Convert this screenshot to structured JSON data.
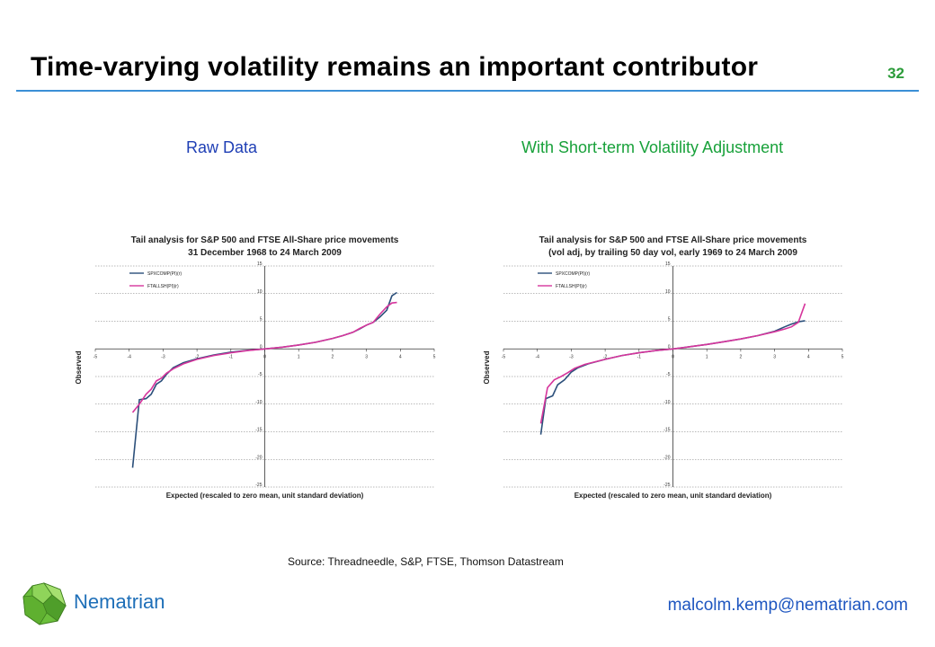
{
  "slide": {
    "title": "Time-varying volatility remains an important contributor",
    "page_number": "32",
    "raw_title": "Raw Data",
    "adjusted_title": "With Short-term Volatility Adjustment",
    "source": "Source: Threadneedle, S&P, FTSE, Thomson Datastream",
    "brand": "Nematrian",
    "email": "malcolm.kemp@nematrian.com"
  },
  "colors": {
    "title_rule": "#3b8fd6",
    "sp_series": "#2b4f7a",
    "ftse_series": "#d6359c",
    "raw_title": "#1f3fb5",
    "adjusted_title": "#18a13a",
    "brand": "#1e6fb8"
  },
  "chart_data": [
    {
      "type": "line",
      "title": "Tail analysis for S&P 500 and FTSE All-Share price movements",
      "subtitle": "31 December 1968 to 24 March 2009",
      "xlabel": "Expected (rescaled to zero mean, unit standard deviation)",
      "ylabel": "Observed",
      "xlim": [
        -5,
        5
      ],
      "ylim": [
        -25,
        15
      ],
      "x_ticks": [
        "-5",
        "-4",
        "-3",
        "-2",
        "-1",
        "0",
        "1",
        "2",
        "3",
        "4",
        "5"
      ],
      "y_ticks": [
        "15",
        "10",
        "5",
        "0",
        "-5",
        "-10",
        "-15",
        "-20",
        "-25"
      ],
      "legend": "top-left",
      "series": [
        {
          "name": "SPXCOMP(PI)(r)",
          "color": "#2b4f7a",
          "points": [
            [
              -3.9,
              -21.5
            ],
            [
              -3.7,
              -9.2
            ],
            [
              -3.5,
              -9.0
            ],
            [
              -3.35,
              -8.2
            ],
            [
              -3.2,
              -6.4
            ],
            [
              -3.05,
              -5.8
            ],
            [
              -2.9,
              -4.6
            ],
            [
              -2.7,
              -3.4
            ],
            [
              -2.4,
              -2.5
            ],
            [
              -2.0,
              -1.8
            ],
            [
              -1.5,
              -1.1
            ],
            [
              -1.0,
              -0.6
            ],
            [
              -0.5,
              -0.25
            ],
            [
              0,
              0
            ],
            [
              0.5,
              0.3
            ],
            [
              1.0,
              0.7
            ],
            [
              1.5,
              1.2
            ],
            [
              2.0,
              1.9
            ],
            [
              2.3,
              2.4
            ],
            [
              2.6,
              3.0
            ],
            [
              2.8,
              3.6
            ],
            [
              3.0,
              4.3
            ],
            [
              3.2,
              4.8
            ],
            [
              3.4,
              5.8
            ],
            [
              3.6,
              7.0
            ],
            [
              3.75,
              9.6
            ],
            [
              3.9,
              10.2
            ]
          ]
        },
        {
          "name": "FTALLSH(PI)(r)",
          "color": "#d6359c",
          "points": [
            [
              -3.9,
              -11.5
            ],
            [
              -3.7,
              -10.0
            ],
            [
              -3.5,
              -8.2
            ],
            [
              -3.35,
              -7.3
            ],
            [
              -3.2,
              -5.8
            ],
            [
              -3.05,
              -5.3
            ],
            [
              -2.9,
              -4.4
            ],
            [
              -2.7,
              -3.6
            ],
            [
              -2.4,
              -2.7
            ],
            [
              -2.0,
              -1.9
            ],
            [
              -1.5,
              -1.2
            ],
            [
              -1.0,
              -0.7
            ],
            [
              -0.5,
              -0.3
            ],
            [
              0,
              0
            ],
            [
              0.5,
              0.3
            ],
            [
              1.0,
              0.7
            ],
            [
              1.5,
              1.2
            ],
            [
              2.0,
              1.9
            ],
            [
              2.3,
              2.4
            ],
            [
              2.6,
              3.0
            ],
            [
              2.8,
              3.7
            ],
            [
              3.0,
              4.3
            ],
            [
              3.2,
              4.8
            ],
            [
              3.4,
              6.3
            ],
            [
              3.6,
              7.6
            ],
            [
              3.75,
              8.3
            ],
            [
              3.9,
              8.4
            ]
          ]
        }
      ]
    },
    {
      "type": "line",
      "title": "Tail analysis for S&P 500 and FTSE All-Share price movements",
      "subtitle": "(vol adj, by trailing 50 day vol, early 1969 to 24 March 2009",
      "xlabel": "Expected (rescaled to zero mean, unit standard deviation)",
      "ylabel": "Observed",
      "xlim": [
        -5,
        5
      ],
      "ylim": [
        -25,
        15
      ],
      "x_ticks": [
        "-5",
        "-4",
        "-3",
        "-2",
        "-1",
        "0",
        "1",
        "2",
        "3",
        "4",
        "5"
      ],
      "y_ticks": [
        "15",
        "10",
        "5",
        "0",
        "-5",
        "-10",
        "-15",
        "-20",
        "-25"
      ],
      "legend": "top-left",
      "series": [
        {
          "name": "SPXCOMP(PI)(r)",
          "color": "#2b4f7a",
          "points": [
            [
              -3.9,
              -15.5
            ],
            [
              -3.75,
              -9.0
            ],
            [
              -3.55,
              -8.5
            ],
            [
              -3.4,
              -6.5
            ],
            [
              -3.2,
              -5.6
            ],
            [
              -3.0,
              -4.2
            ],
            [
              -2.8,
              -3.4
            ],
            [
              -2.5,
              -2.7
            ],
            [
              -2.0,
              -1.9
            ],
            [
              -1.5,
              -1.2
            ],
            [
              -1.0,
              -0.7
            ],
            [
              -0.5,
              -0.3
            ],
            [
              0,
              0
            ],
            [
              0.5,
              0.4
            ],
            [
              1.0,
              0.8
            ],
            [
              1.5,
              1.3
            ],
            [
              2.0,
              1.8
            ],
            [
              2.5,
              2.4
            ],
            [
              3.0,
              3.2
            ],
            [
              3.3,
              4.0
            ],
            [
              3.5,
              4.5
            ],
            [
              3.7,
              4.9
            ],
            [
              3.9,
              5.1
            ]
          ]
        },
        {
          "name": "FTALLSH(PI)(r)",
          "color": "#d6359c",
          "points": [
            [
              -3.9,
              -13.5
            ],
            [
              -3.7,
              -7.0
            ],
            [
              -3.5,
              -5.6
            ],
            [
              -3.3,
              -5.0
            ],
            [
              -3.1,
              -4.3
            ],
            [
              -2.9,
              -3.5
            ],
            [
              -2.6,
              -2.8
            ],
            [
              -2.0,
              -1.9
            ],
            [
              -1.5,
              -1.2
            ],
            [
              -1.0,
              -0.7
            ],
            [
              -0.5,
              -0.3
            ],
            [
              0,
              0
            ],
            [
              0.5,
              0.4
            ],
            [
              1.0,
              0.8
            ],
            [
              1.5,
              1.3
            ],
            [
              2.0,
              1.8
            ],
            [
              2.5,
              2.4
            ],
            [
              3.0,
              3.1
            ],
            [
              3.3,
              3.6
            ],
            [
              3.5,
              4.0
            ],
            [
              3.7,
              4.8
            ],
            [
              3.9,
              8.2
            ]
          ]
        }
      ]
    }
  ]
}
